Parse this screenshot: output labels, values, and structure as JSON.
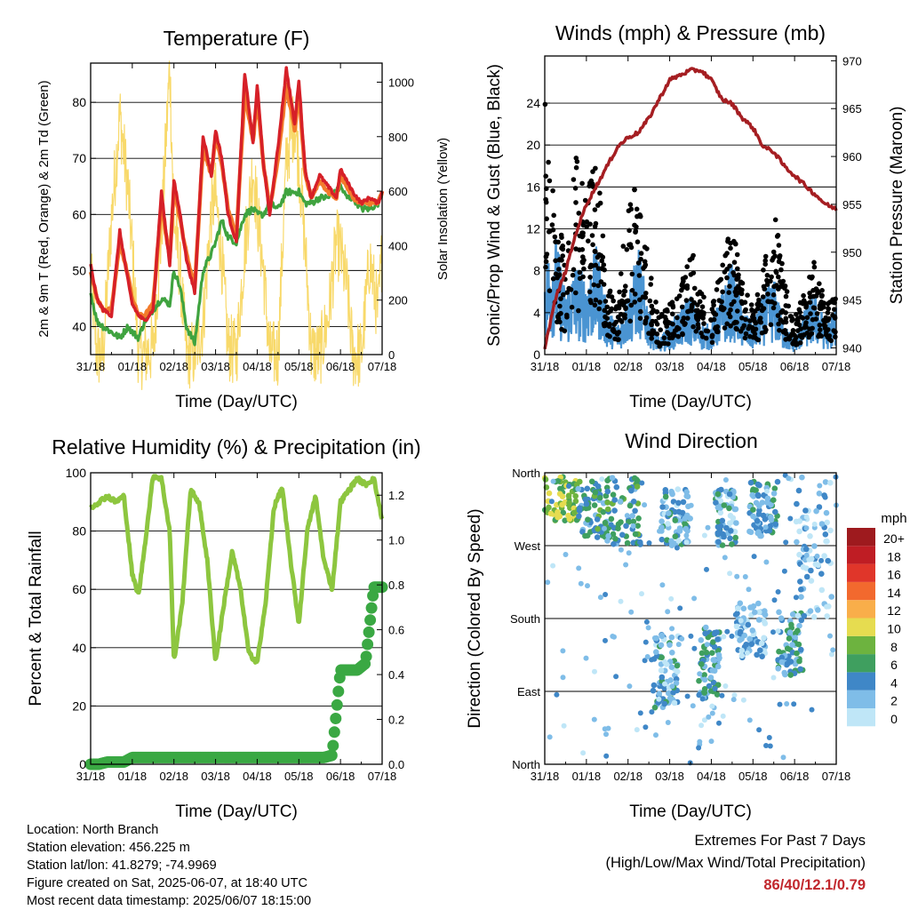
{
  "x_ticks": [
    "31/18",
    "01/18",
    "02/18",
    "03/18",
    "04/18",
    "05/18",
    "06/18",
    "07/18"
  ],
  "x_label": "Time (Day/UTC)",
  "temperature": {
    "title": "Temperature (F)",
    "ylabel_left": "2m & 9m T (Red, Orange) & 2m Td (Green)",
    "ylabel_right": "Solar Insolation (Yellow)",
    "left_ticks": [
      "40",
      "50",
      "60",
      "70",
      "80"
    ],
    "right_ticks": [
      "0",
      "200",
      "400",
      "600",
      "800",
      "1000"
    ]
  },
  "winds": {
    "title": "Winds (mph) & Pressure (mb)",
    "ylabel_left": "Sonic/Prop Wind & Gust (Blue, Black)",
    "ylabel_right": "Station Pressure (Maroon)",
    "left_ticks": [
      "0",
      "4",
      "8",
      "12",
      "16",
      "20",
      "24"
    ],
    "right_ticks": [
      "940",
      "945",
      "950",
      "955",
      "960",
      "965",
      "970"
    ]
  },
  "humidity": {
    "title": "Relative Humidity (%) & Precipitation (in)",
    "ylabel_left": "Percent & Total Rainfall",
    "left_ticks": [
      "0",
      "20",
      "40",
      "60",
      "80",
      "100"
    ],
    "right_ticks": [
      "0.0",
      "0.2",
      "0.4",
      "0.6",
      "0.8",
      "1.0",
      "1.2"
    ]
  },
  "wind_direction": {
    "title": "Wind Direction",
    "ylabel_left": "Direction (Colored By Speed)",
    "left_ticks": [
      "North",
      "East",
      "South",
      "West",
      "North"
    ],
    "legend_title": "mph",
    "legend_labels": [
      "0",
      "2",
      "4",
      "6",
      "8",
      "10",
      "12",
      "14",
      "16",
      "18",
      "20+"
    ],
    "legend_colors": [
      "#bfe6f7",
      "#7fbde8",
      "#3f87c7",
      "#3f9f5f",
      "#6db33f",
      "#e6dc50",
      "#f9ae4a",
      "#f2692e",
      "#e0362a",
      "#bf1d24",
      "#9e1a1e"
    ]
  },
  "info": {
    "location": "Location: North Branch",
    "elevation": "Station elevation: 456.225 m",
    "latlon": "Station lat/lon: 41.8279; -74.9969",
    "created": "Figure created on Sat, 2025-06-07, at 18:40 UTC",
    "recent": "Most recent data timestamp: 2025/06/07 18:15:00"
  },
  "extremes": {
    "title": "Extremes For Past 7 Days",
    "subtitle": "(High/Low/Max Wind/Total Precipitation)",
    "values": "86/40/12.1/0.79"
  },
  "colors": {
    "temp_2m": "#d62028",
    "temp_9m": "#f37b2b",
    "dewpoint": "#3fa33f",
    "solar": "#f8d96a",
    "wind": "#4a94d2",
    "gust": "#000000",
    "pressure": "#a51e22",
    "rh": "#8dc63f",
    "precip": "#3aa843"
  },
  "chart_data": [
    {
      "type": "line",
      "title": "Temperature (F)",
      "xlabel": "Time (Day/UTC)",
      "ylabel": "2m & 9m T (Red, Orange) & 2m Td (Green)",
      "ylabel_right": "Solar Insolation (Yellow)",
      "x_ticks": [
        "31/18",
        "01/18",
        "02/18",
        "03/18",
        "04/18",
        "05/18",
        "06/18",
        "07/18"
      ],
      "ylim": [
        35,
        87
      ],
      "ylim_right": [
        0,
        1070
      ],
      "x": [
        0,
        0.15,
        0.3,
        0.5,
        0.7,
        0.9,
        1.0,
        1.15,
        1.3,
        1.5,
        1.7,
        1.9,
        2.0,
        2.15,
        2.3,
        2.5,
        2.7,
        2.9,
        3.0,
        3.15,
        3.3,
        3.5,
        3.7,
        3.9,
        4.0,
        4.15,
        4.3,
        4.5,
        4.7,
        4.9,
        5.0,
        5.15,
        5.3,
        5.5,
        5.7,
        5.9,
        6.0,
        6.15,
        6.3,
        6.5,
        6.7,
        6.9,
        7.0
      ],
      "series": [
        {
          "name": "2m T",
          "values": [
            51,
            45,
            43,
            42,
            57,
            48,
            44,
            42,
            41,
            43,
            64,
            51,
            66,
            60,
            52,
            46,
            74,
            67,
            75,
            70,
            60,
            55,
            85,
            73,
            83,
            69,
            60,
            72,
            86,
            76,
            84,
            68,
            63,
            67,
            65,
            63,
            68,
            66,
            64,
            62,
            63,
            62,
            64
          ]
        },
        {
          "name": "9m T",
          "values": [
            50,
            45,
            43,
            43,
            55,
            49,
            45,
            42,
            42,
            44,
            62,
            52,
            65,
            59,
            53,
            47,
            72,
            67,
            74,
            69,
            61,
            56,
            82,
            73,
            81,
            69,
            61,
            70,
            83,
            75,
            82,
            67,
            63,
            66,
            64,
            63,
            67,
            65,
            63,
            62,
            62,
            62,
            64
          ]
        },
        {
          "name": "2m Td",
          "values": [
            46,
            41,
            40,
            39,
            38,
            40,
            39,
            38,
            41,
            43,
            45,
            44,
            50,
            47,
            40,
            37,
            50,
            53,
            55,
            59,
            56,
            55,
            60,
            61,
            60,
            60,
            62,
            61,
            64,
            64,
            64,
            62,
            62,
            63,
            63,
            64,
            65,
            63,
            63,
            61,
            61,
            62,
            64
          ]
        },
        {
          "name": "Solar Insolation",
          "values": [
            300,
            0,
            0,
            500,
            880,
            600,
            380,
            0,
            0,
            20,
            450,
            1060,
            500,
            300,
            0,
            0,
            120,
            530,
            580,
            350,
            30,
            0,
            390,
            690,
            520,
            310,
            0,
            0,
            720,
            860,
            700,
            400,
            10,
            0,
            130,
            410,
            380,
            250,
            0,
            0,
            350,
            150,
            380
          ]
        }
      ]
    },
    {
      "type": "line",
      "title": "Winds (mph) & Pressure (mb)",
      "xlabel": "Time (Day/UTC)",
      "ylabel": "Sonic/Prop Wind & Gust (Blue, Black)",
      "ylabel_right": "Station Pressure (Maroon)",
      "x_ticks": [
        "31/18",
        "01/18",
        "02/18",
        "03/18",
        "04/18",
        "05/18",
        "06/18",
        "07/18"
      ],
      "ylim": [
        0,
        28.5
      ],
      "ylim_right": [
        939.3,
        970.5
      ],
      "x": [
        0,
        0.25,
        0.5,
        0.75,
        1.0,
        1.25,
        1.5,
        1.75,
        2.0,
        2.25,
        2.5,
        2.75,
        3.0,
        3.25,
        3.5,
        3.75,
        4.0,
        4.25,
        4.5,
        4.75,
        5.0,
        5.25,
        5.5,
        5.75,
        6.0,
        6.25,
        6.5,
        6.75,
        7.0
      ],
      "series": [
        {
          "name": "Sonic/Prop Wind",
          "values": [
            6,
            8,
            4,
            6,
            5,
            7,
            3,
            2,
            4,
            7,
            3,
            1,
            2,
            3,
            4,
            2,
            2,
            4,
            6,
            3,
            2,
            4,
            5,
            2,
            1,
            3,
            4,
            2,
            3
          ]
        },
        {
          "name": "Gust",
          "values": [
            21,
            12,
            8,
            16,
            13,
            16,
            6,
            5,
            12,
            15,
            7,
            3,
            4,
            5,
            9,
            5,
            4,
            7,
            11,
            6,
            4,
            7,
            12,
            6,
            3,
            5,
            8,
            4,
            5
          ]
        },
        {
          "name": "Station Pressure",
          "values": [
            940,
            945,
            948,
            952,
            955,
            957,
            959,
            961,
            962,
            962.5,
            964,
            966,
            968,
            968.5,
            969,
            969,
            968,
            966,
            965.5,
            964,
            963,
            961,
            960.5,
            959,
            958,
            957,
            956,
            955,
            954.5
          ]
        }
      ]
    },
    {
      "type": "line",
      "title": "Relative Humidity (%) & Precipitation (in)",
      "xlabel": "Time (Day/UTC)",
      "ylabel": "Percent & Total Rainfall",
      "x_ticks": [
        "31/18",
        "01/18",
        "02/18",
        "03/18",
        "04/18",
        "05/18",
        "06/18",
        "07/18"
      ],
      "ylim": [
        0,
        100
      ],
      "ylim_right": [
        0,
        1.3
      ],
      "x": [
        0,
        0.2,
        0.4,
        0.6,
        0.8,
        1.0,
        1.15,
        1.3,
        1.5,
        1.7,
        1.9,
        2.0,
        2.2,
        2.4,
        2.6,
        2.8,
        3.0,
        3.2,
        3.4,
        3.6,
        3.8,
        4.0,
        4.2,
        4.4,
        4.6,
        4.8,
        5.0,
        5.2,
        5.4,
        5.6,
        5.8,
        6.0,
        6.2,
        6.4,
        6.6,
        6.8,
        7.0
      ],
      "series": [
        {
          "name": "Relative Humidity",
          "values": [
            88,
            90,
            92,
            90,
            92,
            65,
            58,
            75,
            99,
            98,
            80,
            35,
            55,
            94,
            90,
            70,
            35,
            55,
            73,
            60,
            38,
            35,
            55,
            88,
            95,
            70,
            48,
            80,
            92,
            70,
            60,
            90,
            94,
            98,
            96,
            98,
            84
          ]
        },
        {
          "name": "Total Precipitation",
          "values": [
            0,
            0,
            0.01,
            0.01,
            0.01,
            0.03,
            0.03,
            0.03,
            0.03,
            0.03,
            0.03,
            0.03,
            0.03,
            0.03,
            0.03,
            0.03,
            0.03,
            0.03,
            0.03,
            0.03,
            0.03,
            0.03,
            0.03,
            0.03,
            0.03,
            0.03,
            0.03,
            0.03,
            0.03,
            0.03,
            0.04,
            0.42,
            0.42,
            0.42,
            0.45,
            0.79,
            0.79
          ]
        }
      ]
    },
    {
      "type": "scatter",
      "title": "Wind Direction",
      "xlabel": "Time (Day/UTC)",
      "ylabel": "Direction (Colored By Speed)",
      "x_ticks": [
        "31/18",
        "01/18",
        "02/18",
        "03/18",
        "04/18",
        "05/18",
        "06/18",
        "07/18"
      ],
      "y_categories": [
        "North",
        "East",
        "South",
        "West",
        "North"
      ],
      "ylim": [
        0,
        360
      ],
      "legend": {
        "title": "mph",
        "labels": [
          "0",
          "2",
          "4",
          "6",
          "8",
          "10",
          "12",
          "14",
          "16",
          "18",
          "20+"
        ]
      },
      "clusters": [
        {
          "x_range": [
            0,
            0.8
          ],
          "dir_range": [
            300,
            355
          ],
          "speed": 8
        },
        {
          "x_range": [
            0.8,
            1.5
          ],
          "dir_range": [
            280,
            350
          ],
          "speed": 5
        },
        {
          "x_range": [
            1.5,
            2.3
          ],
          "dir_range": [
            270,
            355
          ],
          "speed": 5
        },
        {
          "x_range": [
            2.6,
            3.2
          ],
          "dir_range": [
            70,
            160
          ],
          "speed": 3
        },
        {
          "x_range": [
            2.8,
            3.5
          ],
          "dir_range": [
            270,
            340
          ],
          "speed": 3
        },
        {
          "x_range": [
            3.7,
            4.2
          ],
          "dir_range": [
            80,
            170
          ],
          "speed": 4
        },
        {
          "x_range": [
            4.1,
            4.6
          ],
          "dir_range": [
            270,
            340
          ],
          "speed": 3
        },
        {
          "x_range": [
            4.6,
            5.3
          ],
          "dir_range": [
            130,
            200
          ],
          "speed": 2
        },
        {
          "x_range": [
            4.9,
            5.6
          ],
          "dir_range": [
            280,
            350
          ],
          "speed": 4
        },
        {
          "x_range": [
            5.6,
            6.2
          ],
          "dir_range": [
            110,
            190
          ],
          "speed": 4
        },
        {
          "x_range": [
            6.0,
            6.9
          ],
          "dir_range": [
            180,
            355
          ],
          "speed": 2
        }
      ]
    }
  ]
}
